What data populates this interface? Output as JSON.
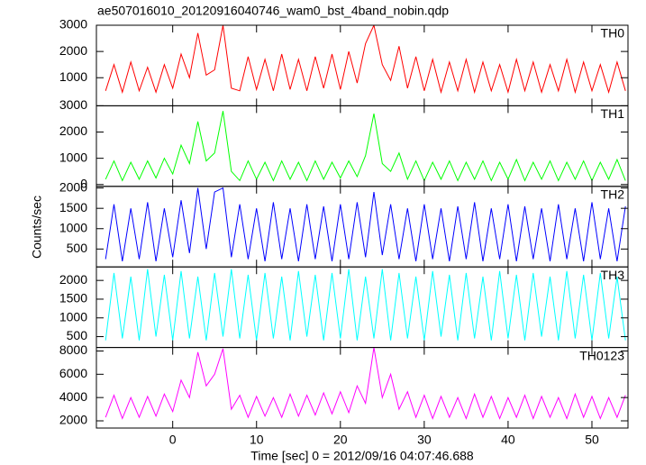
{
  "chart_data": {
    "type": "line",
    "title": "ae507016010_20120916040746_wam0_bst_4band_nobin.qdp",
    "xlabel": "Time [sec] 0 = 2012/09/16 04:07:46.688",
    "ylabel": "Counts/sec",
    "xlim": [
      -9.1,
      54.3
    ],
    "xticks": [
      0,
      10,
      20,
      30,
      40,
      50
    ],
    "x": [
      -8,
      -7,
      -6,
      -5,
      -4,
      -3,
      -2,
      -1,
      0,
      1,
      2,
      3,
      4,
      5,
      6,
      7,
      8,
      9,
      10,
      11,
      12,
      13,
      14,
      15,
      16,
      17,
      18,
      19,
      20,
      21,
      22,
      23,
      24,
      25,
      26,
      27,
      28,
      29,
      30,
      31,
      32,
      33,
      34,
      35,
      36,
      37,
      38,
      39,
      40,
      41,
      42,
      43,
      44,
      45,
      46,
      47,
      48,
      49,
      50,
      51,
      52,
      53,
      54
    ],
    "series": [
      {
        "name": "TH0",
        "color": "#ff0000",
        "ylim": [
          -70,
          3000
        ],
        "yticks": [
          1000,
          2000,
          3000
        ],
        "values": [
          500,
          1500,
          450,
          1600,
          500,
          1400,
          450,
          1500,
          600,
          1900,
          1000,
          2700,
          1100,
          1300,
          3000,
          600,
          500,
          1800,
          550,
          1700,
          500,
          1900,
          550,
          1700,
          500,
          1800,
          600,
          1900,
          550,
          2000,
          800,
          2300,
          3000,
          1500,
          900,
          2200,
          600,
          1800,
          500,
          1700,
          450,
          1600,
          500,
          1700,
          450,
          1600,
          500,
          1500,
          450,
          1700,
          500,
          1600,
          450,
          1500,
          500,
          1700,
          450,
          1600,
          500,
          1500,
          450,
          1600,
          500
        ]
      },
      {
        "name": "TH1",
        "color": "#00ff00",
        "ylim": [
          -70,
          3000
        ],
        "yticks": [
          0,
          1000,
          2000,
          3000
        ],
        "values": [
          200,
          900,
          150,
          850,
          200,
          900,
          250,
          1000,
          400,
          1500,
          800,
          2400,
          900,
          1200,
          2800,
          500,
          150,
          900,
          200,
          850,
          150,
          900,
          200,
          850,
          150,
          900,
          200,
          850,
          250,
          900,
          300,
          1100,
          2700,
          800,
          500,
          1200,
          200,
          900,
          150,
          850,
          200,
          900,
          150,
          850,
          200,
          900,
          150,
          850,
          200,
          950,
          150,
          850,
          200,
          900,
          150,
          850,
          200,
          900,
          150,
          850,
          200,
          950,
          150
        ]
      },
      {
        "name": "TH2",
        "color": "#0000ff",
        "ylim": [
          60,
          2040
        ],
        "yticks": [
          500,
          1000,
          1500,
          2000
        ],
        "values": [
          250,
          1600,
          200,
          1500,
          250,
          1650,
          200,
          1500,
          300,
          1700,
          400,
          2000,
          500,
          1900,
          2000,
          300,
          1600,
          250,
          1500,
          200,
          1650,
          250,
          1500,
          200,
          1600,
          250,
          1550,
          200,
          1600,
          250,
          1650,
          300,
          1900,
          350,
          1600,
          250,
          1500,
          200,
          1600,
          250,
          1500,
          200,
          1550,
          250,
          1650,
          200,
          1500,
          250,
          1600,
          200,
          1550,
          250,
          1500,
          200,
          1600,
          250,
          1500,
          200,
          1650,
          250,
          1500,
          200,
          1550
        ]
      },
      {
        "name": "TH3",
        "color": "#00ffff",
        "ylim": [
          210,
          2360
        ],
        "yticks": [
          500,
          1000,
          1500,
          2000
        ],
        "values": [
          400,
          2200,
          450,
          2100,
          400,
          2300,
          500,
          2150,
          400,
          2250,
          450,
          2100,
          400,
          2200,
          500,
          2300,
          450,
          2150,
          400,
          2200,
          450,
          2100,
          400,
          2250,
          500,
          2150,
          400,
          2200,
          450,
          2300,
          400,
          2100,
          450,
          2300,
          400,
          2200,
          450,
          2100,
          400,
          2250,
          500,
          2150,
          400,
          2200,
          450,
          2100,
          400,
          2250,
          450,
          2150,
          400,
          2200,
          500,
          2100,
          400,
          2250,
          450,
          2150,
          400,
          2200,
          450,
          2100,
          400
        ]
      },
      {
        "name": "TH0123",
        "color": "#ff00ff",
        "ylim": [
          1380,
          8300
        ],
        "yticks": [
          2000,
          4000,
          6000,
          8000
        ],
        "values": [
          2300,
          4200,
          2200,
          4000,
          2300,
          4100,
          2400,
          4300,
          2800,
          5500,
          4000,
          7900,
          5000,
          6000,
          8200,
          3000,
          4200,
          2300,
          4100,
          2400,
          4000,
          2300,
          4300,
          2400,
          4200,
          2500,
          4400,
          2600,
          4500,
          2700,
          5000,
          3500,
          8300,
          4000,
          6000,
          3000,
          4500,
          2300,
          4200,
          2200,
          4100,
          2300,
          4000,
          2200,
          4300,
          2300,
          4100,
          2200,
          4000,
          2300,
          4200,
          2200,
          4100,
          2300,
          4000,
          2200,
          4300,
          2300,
          4100,
          2200,
          4000,
          2300,
          4200
        ]
      }
    ]
  }
}
